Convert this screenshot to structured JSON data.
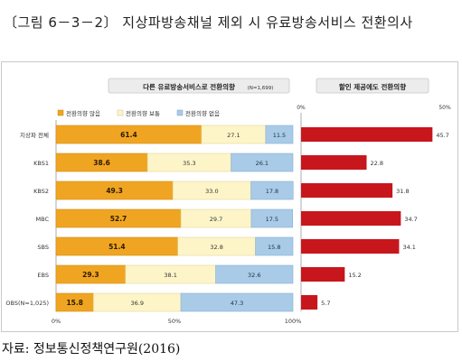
{
  "figure": {
    "title": "〔그림 6－3－2〕 지상파방송채널 제외 시 유료방송서비스 전환의사",
    "source": "자료: 정보통신정책연구원(2016)"
  },
  "chart_data": [
    {
      "type": "bar",
      "stacked": true,
      "orientation": "horizontal",
      "title": "다른 유료방송서비스로 전환의향",
      "subtitle": "(N=1,699)",
      "categories": [
        "지상파 전체",
        "KBS1",
        "KBS2",
        "MBC",
        "SBS",
        "EBS",
        "OBS(N=1,025)"
      ],
      "series": [
        {
          "name": "전환의향 많음",
          "color": "#f0a522",
          "values": [
            61.4,
            38.6,
            49.3,
            52.7,
            51.4,
            29.3,
            15.8
          ]
        },
        {
          "name": "전환의향 보통",
          "color": "#fdf5c8",
          "values": [
            27.1,
            35.3,
            33.0,
            29.7,
            32.8,
            38.1,
            36.9
          ]
        },
        {
          "name": "전환의향 없음",
          "color": "#a9cbe8",
          "values": [
            11.5,
            26.1,
            17.8,
            17.5,
            15.8,
            32.6,
            47.3
          ]
        }
      ],
      "xlim": [
        0,
        100
      ],
      "xticks": [
        "0%",
        "50%",
        "100%"
      ],
      "legend": "top"
    },
    {
      "type": "bar",
      "orientation": "horizontal",
      "title": "할인 제공에도 전환의향",
      "categories": [
        "지상파 전체",
        "KBS1",
        "KBS2",
        "MBC",
        "SBS",
        "EBS",
        "OBS(N=1,025)"
      ],
      "series": [
        {
          "color": "#c8161d",
          "values": [
            45.7,
            22.8,
            31.8,
            34.7,
            34.1,
            15.2,
            5.7
          ]
        }
      ],
      "xlim": [
        0,
        50
      ],
      "xticks": [
        "0%",
        "50%"
      ]
    }
  ]
}
